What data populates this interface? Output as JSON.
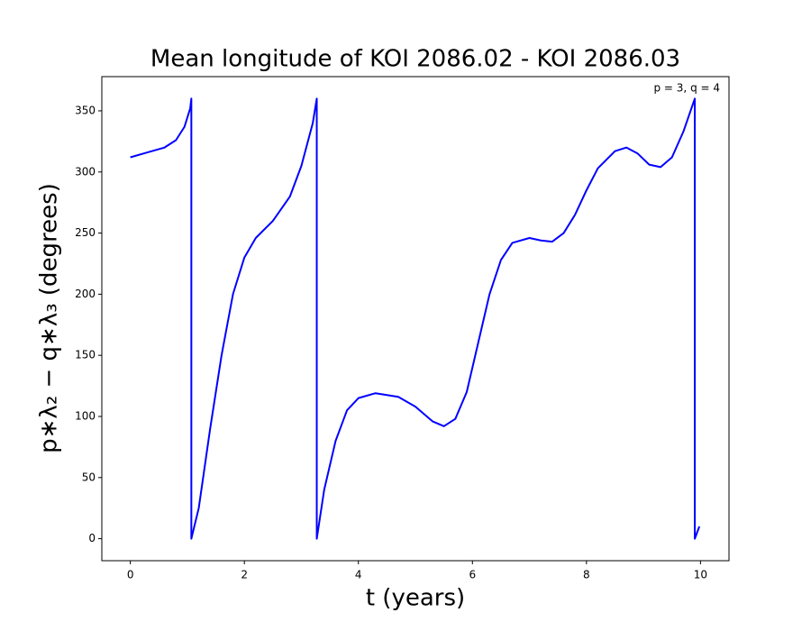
{
  "chart_data": {
    "type": "line",
    "title": "Mean longitude of KOI 2086.02 - KOI 2086.03",
    "xlabel": "t (years)",
    "ylabel": "p∗λ₂ − q∗λ₃ (degrees)",
    "annotation": "p = 3, q = 4",
    "x": [
      0,
      0.3,
      0.6,
      0.8,
      0.95,
      1.05,
      1.07,
      1.07,
      1.2,
      1.4,
      1.6,
      1.8,
      2.0,
      2.2,
      2.5,
      2.8,
      3.0,
      3.2,
      3.27,
      3.27,
      3.4,
      3.6,
      3.8,
      4.0,
      4.3,
      4.7,
      5.0,
      5.3,
      5.5,
      5.7,
      5.9,
      6.1,
      6.3,
      6.5,
      6.7,
      7.0,
      7.2,
      7.4,
      7.6,
      7.8,
      8.0,
      8.2,
      8.5,
      8.7,
      8.9,
      9.1,
      9.3,
      9.5,
      9.7,
      9.9,
      9.9,
      9.98
    ],
    "series": [
      {
        "color": "#0000ff",
        "values": [
          312,
          316,
          320,
          326,
          337,
          352,
          360,
          0,
          25,
          90,
          150,
          200,
          230,
          246,
          260,
          280,
          305,
          340,
          360,
          0,
          40,
          80,
          105,
          115,
          119,
          116,
          108,
          96,
          92,
          98,
          120,
          160,
          200,
          228,
          242,
          246,
          244,
          243,
          250,
          265,
          285,
          303,
          317,
          320,
          315,
          306,
          304,
          312,
          333,
          360,
          0,
          10
        ]
      }
    ],
    "xlim": [
      -0.5,
      10.5
    ],
    "ylim": [
      -18,
      378
    ],
    "xticks": [
      0,
      2,
      4,
      6,
      8,
      10
    ],
    "yticks": [
      0,
      50,
      100,
      150,
      200,
      250,
      300,
      350
    ],
    "grid": false
  }
}
